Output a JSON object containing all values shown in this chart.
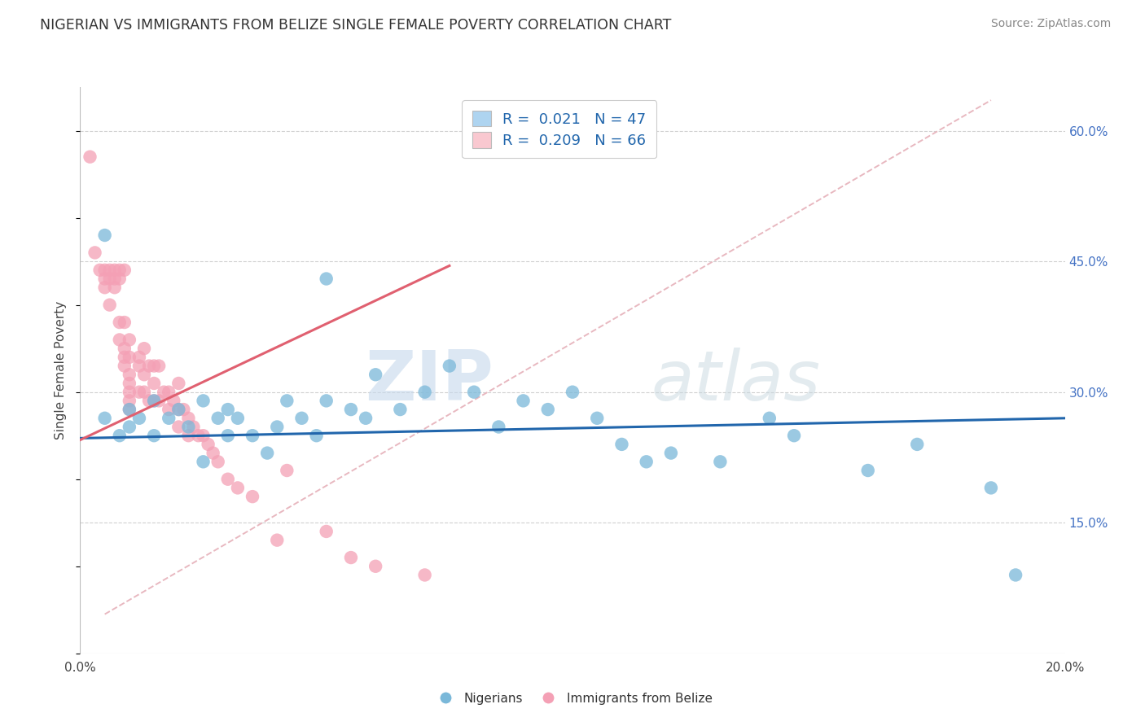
{
  "title": "NIGERIAN VS IMMIGRANTS FROM BELIZE SINGLE FEMALE POVERTY CORRELATION CHART",
  "source": "Source: ZipAtlas.com",
  "ylabel": "Single Female Poverty",
  "xmin": 0.0,
  "xmax": 0.2,
  "ymin": 0.0,
  "ymax": 0.65,
  "x_ticks": [
    0.0,
    0.04,
    0.08,
    0.12,
    0.16,
    0.2
  ],
  "x_tick_labels": [
    "0.0%",
    "",
    "",
    "",
    "",
    "20.0%"
  ],
  "y_ticks_right": [
    0.15,
    0.3,
    0.45,
    0.6
  ],
  "y_tick_labels_right": [
    "15.0%",
    "30.0%",
    "45.0%",
    "60.0%"
  ],
  "blue_color": "#7ab8d9",
  "pink_color": "#f4a0b5",
  "blue_line_color": "#2166ac",
  "pink_line_color": "#e06070",
  "legend_blue_label": "R =  0.021   N = 47",
  "legend_pink_label": "R =  0.209   N = 66",
  "legend_blue_fill": "#aed4f0",
  "legend_pink_fill": "#f9c8d0",
  "watermark_zip": "ZIP",
  "watermark_atlas": "atlas",
  "blue_line_x": [
    0.0,
    0.2
  ],
  "blue_line_y": [
    0.247,
    0.27
  ],
  "pink_line_x": [
    0.0,
    0.075
  ],
  "pink_line_y": [
    0.245,
    0.445
  ],
  "diag_line_x": [
    0.005,
    0.185
  ],
  "diag_line_y": [
    0.045,
    0.635
  ],
  "blue_scatter_x": [
    0.005,
    0.008,
    0.01,
    0.01,
    0.012,
    0.015,
    0.015,
    0.018,
    0.02,
    0.022,
    0.025,
    0.028,
    0.03,
    0.03,
    0.032,
    0.035,
    0.038,
    0.04,
    0.042,
    0.045,
    0.048,
    0.05,
    0.055,
    0.058,
    0.06,
    0.065,
    0.07,
    0.075,
    0.08,
    0.085,
    0.09,
    0.095,
    0.1,
    0.105,
    0.11,
    0.115,
    0.12,
    0.13,
    0.14,
    0.145,
    0.16,
    0.17,
    0.185,
    0.19,
    0.005,
    0.025,
    0.05
  ],
  "blue_scatter_y": [
    0.27,
    0.25,
    0.26,
    0.28,
    0.27,
    0.25,
    0.29,
    0.27,
    0.28,
    0.26,
    0.29,
    0.27,
    0.25,
    0.28,
    0.27,
    0.25,
    0.23,
    0.26,
    0.29,
    0.27,
    0.25,
    0.29,
    0.28,
    0.27,
    0.32,
    0.28,
    0.3,
    0.33,
    0.3,
    0.26,
    0.29,
    0.28,
    0.3,
    0.27,
    0.24,
    0.22,
    0.23,
    0.22,
    0.27,
    0.25,
    0.21,
    0.24,
    0.19,
    0.09,
    0.48,
    0.22,
    0.43
  ],
  "pink_scatter_x": [
    0.002,
    0.003,
    0.004,
    0.005,
    0.005,
    0.005,
    0.006,
    0.006,
    0.006,
    0.007,
    0.007,
    0.007,
    0.008,
    0.008,
    0.008,
    0.008,
    0.009,
    0.009,
    0.009,
    0.009,
    0.009,
    0.01,
    0.01,
    0.01,
    0.01,
    0.01,
    0.01,
    0.01,
    0.012,
    0.012,
    0.012,
    0.013,
    0.013,
    0.013,
    0.014,
    0.014,
    0.015,
    0.015,
    0.015,
    0.016,
    0.016,
    0.017,
    0.018,
    0.018,
    0.019,
    0.02,
    0.02,
    0.02,
    0.021,
    0.022,
    0.022,
    0.023,
    0.024,
    0.025,
    0.026,
    0.027,
    0.028,
    0.03,
    0.032,
    0.035,
    0.04,
    0.042,
    0.05,
    0.055,
    0.06,
    0.07
  ],
  "pink_scatter_y": [
    0.57,
    0.46,
    0.44,
    0.44,
    0.43,
    0.42,
    0.44,
    0.43,
    0.4,
    0.44,
    0.43,
    0.42,
    0.44,
    0.43,
    0.38,
    0.36,
    0.44,
    0.38,
    0.35,
    0.34,
    0.33,
    0.36,
    0.34,
    0.32,
    0.31,
    0.3,
    0.29,
    0.28,
    0.34,
    0.33,
    0.3,
    0.35,
    0.32,
    0.3,
    0.33,
    0.29,
    0.33,
    0.31,
    0.29,
    0.33,
    0.29,
    0.3,
    0.3,
    0.28,
    0.29,
    0.31,
    0.28,
    0.26,
    0.28,
    0.27,
    0.25,
    0.26,
    0.25,
    0.25,
    0.24,
    0.23,
    0.22,
    0.2,
    0.19,
    0.18,
    0.13,
    0.21,
    0.14,
    0.11,
    0.1,
    0.09
  ]
}
